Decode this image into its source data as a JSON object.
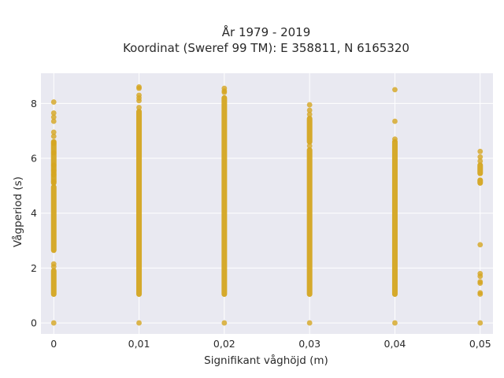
{
  "chart_data": {
    "type": "scatter",
    "title_line1": "År 1979 - 2019",
    "title_line2": "Koordinat (Sweref 99 TM): E 358811, N 6165320",
    "xlabel": "Signifikant våghöjd (m)",
    "ylabel": "Vågperiod (s)",
    "xlim": [
      -0.0015,
      0.0515
    ],
    "ylim": [
      -0.4,
      9.1
    ],
    "x_ticks": [
      0,
      0.01,
      0.02,
      0.03,
      0.04,
      0.05
    ],
    "x_tick_labels": [
      "0",
      "0,01",
      "0,02",
      "0,03",
      "0,04",
      "0,05"
    ],
    "y_ticks": [
      0,
      2,
      4,
      6,
      8
    ],
    "y_tick_labels": [
      "0",
      "2",
      "4",
      "6",
      "8"
    ],
    "grid": true,
    "marker_color": "#d4a520",
    "background_color": "#e9e9f1",
    "series": [
      {
        "x": 0,
        "segments": [
          [
            1.05,
            1.9
          ],
          [
            2.65,
            4.95
          ],
          [
            5.1,
            6.6
          ]
        ],
        "points": [
          0,
          2.05,
          2.15,
          5.15,
          5.4,
          5.55,
          5.75,
          6.2,
          6.55,
          6.8,
          6.95,
          7.35,
          7.5,
          7.65,
          8.05
        ]
      },
      {
        "x": 0.01,
        "segments": [
          [
            1.05,
            7.7
          ]
        ],
        "points": [
          0,
          7.85,
          8.1,
          8.2,
          8.3,
          8.55,
          8.6
        ]
      },
      {
        "x": 0.02,
        "segments": [
          [
            1.05,
            8.2
          ]
        ],
        "points": [
          0,
          8.4,
          8.45,
          8.55
        ]
      },
      {
        "x": 0.03,
        "segments": [
          [
            1.05,
            6.3
          ],
          [
            6.6,
            7.45
          ]
        ],
        "points": [
          0,
          6.45,
          7.6,
          7.75,
          7.95
        ]
      },
      {
        "x": 0.04,
        "segments": [
          [
            1.05,
            6.6
          ]
        ],
        "points": [
          0,
          6.7,
          7.35,
          8.5
        ]
      },
      {
        "x": 0.05,
        "segments": [
          [
            5.1,
            5.2
          ],
          [
            5.45,
            5.75
          ]
        ],
        "points": [
          0,
          1.05,
          1.1,
          1.45,
          1.5,
          1.7,
          1.8,
          2.85,
          5.9,
          6.05,
          6.25
        ]
      }
    ]
  }
}
